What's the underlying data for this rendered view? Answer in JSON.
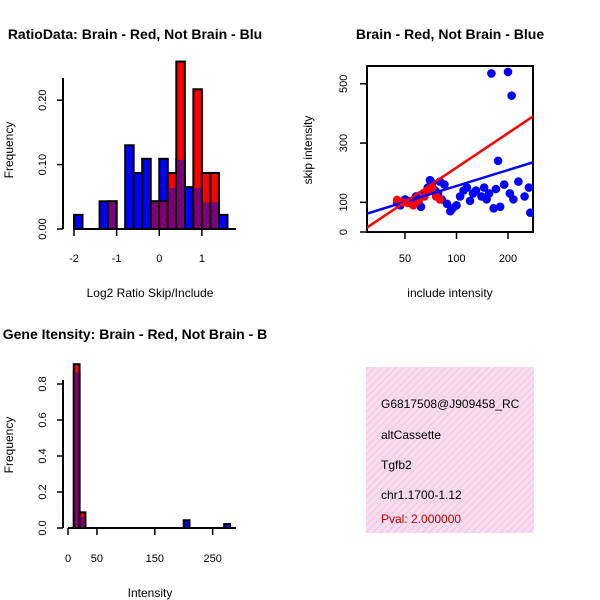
{
  "colors": {
    "red": "#ff0000",
    "blue": "#0000ff",
    "purple": "#800080",
    "info_bg": "#f7dbee",
    "pval": "#b00000"
  },
  "chart_data": [
    {
      "type": "bar",
      "title": "RatioData: Brain - Red, Not Brain - Blu",
      "xlabel": "Log2 Ratio Skip/Include",
      "ylabel": "Frequency",
      "xlim": [
        -2,
        1.8
      ],
      "ylim": [
        0,
        0.25
      ],
      "xticks": [
        "-2",
        "-1",
        "0",
        "1"
      ],
      "yticks": [
        "0.00",
        "0.10",
        "0.20"
      ],
      "bins": [
        {
          "x0": -2.0,
          "x1": -1.8
        },
        {
          "x0": -1.8,
          "x1": -1.6
        },
        {
          "x0": -1.6,
          "x1": -1.4
        },
        {
          "x0": -1.4,
          "x1": -1.2
        },
        {
          "x0": -1.2,
          "x1": -1.0
        },
        {
          "x0": -1.0,
          "x1": -0.8
        },
        {
          "x0": -0.8,
          "x1": -0.6
        },
        {
          "x0": -0.6,
          "x1": -0.4
        },
        {
          "x0": -0.4,
          "x1": -0.2
        },
        {
          "x0": -0.2,
          "x1": 0.0
        },
        {
          "x0": 0.0,
          "x1": 0.2
        },
        {
          "x0": 0.2,
          "x1": 0.4
        },
        {
          "x0": 0.4,
          "x1": 0.6
        },
        {
          "x0": 0.6,
          "x1": 0.8
        },
        {
          "x0": 0.8,
          "x1": 1.0
        },
        {
          "x0": 1.0,
          "x1": 1.2
        },
        {
          "x0": 1.2,
          "x1": 1.4
        },
        {
          "x0": 1.4,
          "x1": 1.6
        }
      ],
      "series": [
        {
          "name": "Not Brain",
          "color": "blue",
          "values": [
            0.022,
            0,
            0,
            0.043,
            0.043,
            0,
            0.13,
            0.087,
            0.109,
            0.043,
            0.109,
            0.065,
            0.109,
            0.065,
            0.065,
            0.043,
            0.043,
            0.022
          ]
        },
        {
          "name": "Brain",
          "color": "red",
          "values": [
            0,
            0,
            0,
            0,
            0.043,
            0,
            0,
            0,
            0,
            0.043,
            0.043,
            0.087,
            0.26,
            0,
            0.217,
            0.087,
            0.087,
            0
          ]
        }
      ]
    },
    {
      "type": "scatter",
      "title": "Brain - Red, Not Brain - Blue",
      "xlabel": "include intensity",
      "ylabel": "skip intensity",
      "xscale": "log",
      "xlim": [
        30,
        280
      ],
      "ylim": [
        0,
        560
      ],
      "xticks": [
        50,
        100,
        200
      ],
      "yticks": [
        0,
        100,
        300,
        500
      ],
      "series": [
        {
          "name": "Not Brain",
          "color": "blue",
          "points": [
            [
              45,
              100
            ],
            [
              47,
              90
            ],
            [
              50,
              110
            ],
            [
              52,
              105
            ],
            [
              55,
              95
            ],
            [
              58,
              120
            ],
            [
              60,
              100
            ],
            [
              62,
              85
            ],
            [
              65,
              130
            ],
            [
              68,
              150
            ],
            [
              70,
              175
            ],
            [
              72,
              165
            ],
            [
              75,
              140
            ],
            [
              78,
              130
            ],
            [
              80,
              170
            ],
            [
              82,
              110
            ],
            [
              85,
              160
            ],
            [
              88,
              95
            ],
            [
              92,
              70
            ],
            [
              95,
              80
            ],
            [
              100,
              90
            ],
            [
              105,
              120
            ],
            [
              110,
              140
            ],
            [
              115,
              150
            ],
            [
              120,
              105
            ],
            [
              125,
              130
            ],
            [
              130,
              140
            ],
            [
              140,
              120
            ],
            [
              145,
              150
            ],
            [
              150,
              110
            ],
            [
              155,
              130
            ],
            [
              160,
              535
            ],
            [
              165,
              80
            ],
            [
              170,
              145
            ],
            [
              175,
              240
            ],
            [
              180,
              85
            ],
            [
              190,
              160
            ],
            [
              200,
              540
            ],
            [
              205,
              130
            ],
            [
              210,
              460
            ],
            [
              215,
              110
            ],
            [
              230,
              170
            ],
            [
              250,
              120
            ],
            [
              265,
              150
            ],
            [
              270,
              65
            ]
          ],
          "fit": [
            [
              30,
              62
            ],
            [
              280,
              235
            ]
          ]
        },
        {
          "name": "Brain",
          "color": "red",
          "points": [
            [
              45,
              108
            ],
            [
              48,
              100
            ],
            [
              52,
              98
            ],
            [
              56,
              90
            ],
            [
              60,
              105
            ],
            [
              65,
              120
            ],
            [
              68,
              140
            ],
            [
              72,
              150
            ],
            [
              76,
              120
            ],
            [
              80,
              110
            ]
          ],
          "fit": [
            [
              30,
              15
            ],
            [
              280,
              390
            ]
          ]
        }
      ]
    },
    {
      "type": "bar",
      "title": "Gene Itensity: Brain - Red, Not Brain - B",
      "xlabel": "Intensity",
      "ylabel": "Frequency",
      "xlim": [
        0,
        280
      ],
      "ylim": [
        0,
        0.9
      ],
      "xticks": [
        0,
        50,
        150,
        250
      ],
      "yticks": [
        "0.0",
        "0.2",
        "0.4",
        "0.6",
        "0.8"
      ],
      "bins": [
        {
          "x0": 10,
          "x1": 20
        },
        {
          "x0": 20,
          "x1": 30
        },
        {
          "x0": 30,
          "x1": 40
        },
        {
          "x0": 190,
          "x1": 200
        },
        {
          "x0": 200,
          "x1": 210
        },
        {
          "x0": 260,
          "x1": 270
        },
        {
          "x0": 270,
          "x1": 280
        }
      ],
      "series": [
        {
          "name": "Not Brain",
          "color": "blue",
          "values": [
            0.87,
            0.065,
            0,
            0,
            0.043,
            0,
            0.022
          ]
        },
        {
          "name": "Brain",
          "color": "red",
          "values": [
            0.91,
            0.087,
            0,
            0,
            0,
            0,
            0
          ]
        }
      ]
    }
  ],
  "info_box": {
    "id": "G6817508@J909458_RC",
    "type": "altCassette",
    "gene": "Tgfb2",
    "location": "chr1.1700-1.12",
    "pval": "Pval: 2.000000"
  }
}
